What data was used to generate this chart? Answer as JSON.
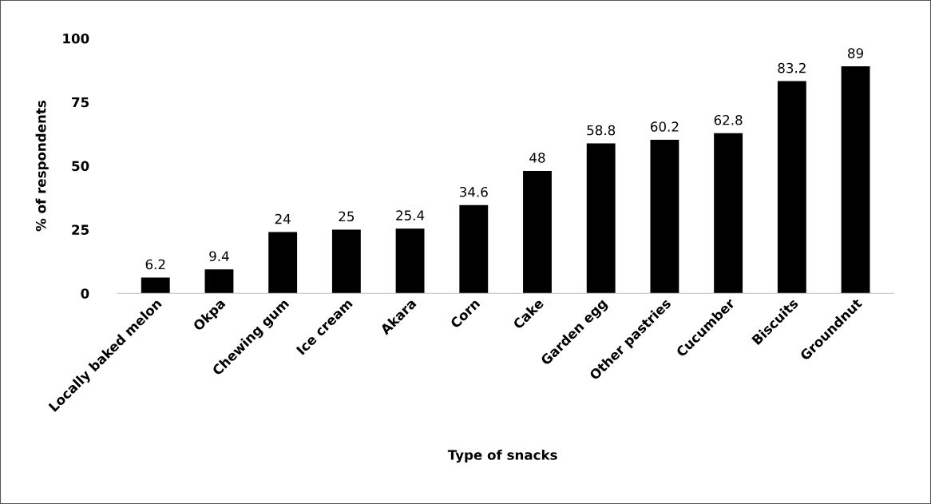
{
  "chart_data": {
    "type": "bar",
    "xlabel": "Type of snacks",
    "ylabel": "% of respondents",
    "categories": [
      "Locally baked melon",
      "Okpa",
      "Chewing gum",
      "Ice cream",
      "Akara",
      "Corn",
      "Cake",
      "Garden egg",
      "Other pastries",
      "Cucumber",
      "Biscuits",
      "Groundnut"
    ],
    "values": [
      6.2,
      9.4,
      24,
      25,
      25.4,
      34.6,
      48,
      58.8,
      60.2,
      62.8,
      83.2,
      89
    ],
    "color": "#000000",
    "ylim": [
      0,
      100
    ],
    "yticks": [
      0,
      25,
      50,
      75,
      100
    ],
    "data_labels": true,
    "grid": false,
    "legend": false
  }
}
